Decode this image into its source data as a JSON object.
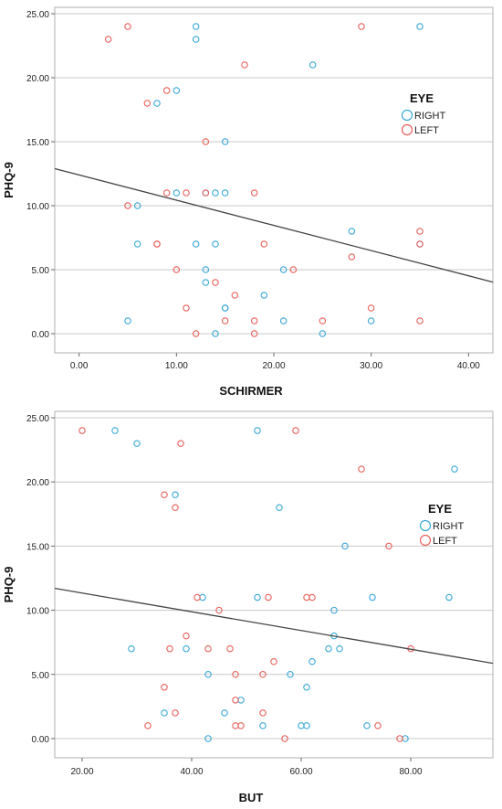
{
  "chart_data": [
    {
      "type": "scatter",
      "xlabel": "SCHIRMER",
      "ylabel": "PHQ-9",
      "xlim": [
        -2.5,
        42.5
      ],
      "ylim": [
        -1.5,
        25.5
      ],
      "xticks": [
        "0.00",
        "10.00",
        "20.00",
        "30.00",
        "40.00"
      ],
      "yticks": [
        "0.00",
        "5.00",
        "10.00",
        "15.00",
        "20.00",
        "25.00"
      ],
      "grid": "horizontal",
      "legend": {
        "title": "EYE",
        "placement": "right",
        "entries": [
          "RIGHT",
          "LEFT"
        ]
      },
      "colors": {
        "RIGHT": "#38a8d8",
        "LEFT": "#e8605a",
        "fit": "#444444"
      },
      "series": [
        {
          "name": "RIGHT",
          "points": [
            [
              12,
              24
            ],
            [
              35,
              24
            ],
            [
              12,
              23
            ],
            [
              24,
              21
            ],
            [
              10,
              19
            ],
            [
              8,
              18
            ],
            [
              15,
              15
            ],
            [
              10,
              11
            ],
            [
              14,
              11
            ],
            [
              15,
              11
            ],
            [
              13,
              11
            ],
            [
              6,
              10
            ],
            [
              6,
              7
            ],
            [
              12,
              7
            ],
            [
              14,
              7
            ],
            [
              28,
              8
            ],
            [
              13,
              5
            ],
            [
              21,
              5
            ],
            [
              13,
              4
            ],
            [
              15,
              2
            ],
            [
              15,
              2
            ],
            [
              19,
              3
            ],
            [
              5,
              1
            ],
            [
              21,
              1
            ],
            [
              30,
              1
            ],
            [
              14,
              0
            ],
            [
              25,
              0
            ],
            [
              35,
              7
            ]
          ]
        },
        {
          "name": "LEFT",
          "points": [
            [
              5,
              24
            ],
            [
              29,
              24
            ],
            [
              3,
              23
            ],
            [
              17,
              21
            ],
            [
              9,
              19
            ],
            [
              7,
              18
            ],
            [
              13,
              15
            ],
            [
              9,
              11
            ],
            [
              11,
              11
            ],
            [
              13,
              11
            ],
            [
              18,
              11
            ],
            [
              5,
              10
            ],
            [
              8,
              7
            ],
            [
              8,
              7
            ],
            [
              19,
              7
            ],
            [
              35,
              7
            ],
            [
              35,
              8
            ],
            [
              10,
              5
            ],
            [
              22,
              5
            ],
            [
              28,
              6
            ],
            [
              14,
              4
            ],
            [
              16,
              3
            ],
            [
              11,
              2
            ],
            [
              30,
              2
            ],
            [
              15,
              1
            ],
            [
              18,
              1
            ],
            [
              25,
              1
            ],
            [
              35,
              1
            ],
            [
              12,
              0
            ],
            [
              18,
              0
            ]
          ]
        }
      ],
      "fit_line": {
        "intercept": 12.4,
        "slope": -0.197
      }
    },
    {
      "type": "scatter",
      "xlabel": "BUT",
      "ylabel": "PHQ-9",
      "xlim": [
        15,
        95
      ],
      "ylim": [
        -1.5,
        25.5
      ],
      "xticks": [
        "20.00",
        "40.00",
        "60.00",
        "80.00"
      ],
      "yticks": [
        "0.00",
        "5.00",
        "10.00",
        "15.00",
        "20.00",
        "25.00"
      ],
      "grid": "horizontal",
      "legend": {
        "title": "EYE",
        "placement": "right",
        "entries": [
          "RIGHT",
          "LEFT"
        ]
      },
      "colors": {
        "RIGHT": "#38a8d8",
        "LEFT": "#e8605a",
        "fit": "#444444"
      },
      "series": [
        {
          "name": "RIGHT",
          "points": [
            [
              26,
              24
            ],
            [
              52,
              24
            ],
            [
              30,
              23
            ],
            [
              88,
              21
            ],
            [
              37,
              19
            ],
            [
              56,
              18
            ],
            [
              68,
              15
            ],
            [
              42,
              11
            ],
            [
              52,
              11
            ],
            [
              73,
              11
            ],
            [
              87,
              11
            ],
            [
              66,
              10
            ],
            [
              66,
              8
            ],
            [
              29,
              7
            ],
            [
              39,
              7
            ],
            [
              65,
              7
            ],
            [
              67,
              7
            ],
            [
              43,
              5
            ],
            [
              58,
              5
            ],
            [
              62,
              6
            ],
            [
              61,
              4
            ],
            [
              35,
              2
            ],
            [
              46,
              2
            ],
            [
              49,
              3
            ],
            [
              53,
              1
            ],
            [
              60,
              1
            ],
            [
              61,
              1
            ],
            [
              72,
              1
            ],
            [
              43,
              0
            ],
            [
              79,
              0
            ]
          ]
        },
        {
          "name": "LEFT",
          "points": [
            [
              20,
              24
            ],
            [
              59,
              24
            ],
            [
              38,
              23
            ],
            [
              71,
              21
            ],
            [
              35,
              19
            ],
            [
              37,
              18
            ],
            [
              76,
              15
            ],
            [
              41,
              11
            ],
            [
              54,
              11
            ],
            [
              61,
              11
            ],
            [
              62,
              11
            ],
            [
              45,
              10
            ],
            [
              39,
              8
            ],
            [
              36,
              7
            ],
            [
              43,
              7
            ],
            [
              47,
              7
            ],
            [
              80,
              7
            ],
            [
              48,
              5
            ],
            [
              53,
              5
            ],
            [
              55,
              6
            ],
            [
              35,
              4
            ],
            [
              48,
              3
            ],
            [
              37,
              2
            ],
            [
              53,
              2
            ],
            [
              32,
              1
            ],
            [
              48,
              1
            ],
            [
              49,
              1
            ],
            [
              74,
              1
            ],
            [
              57,
              0
            ],
            [
              78,
              0
            ]
          ]
        }
      ],
      "fit_line": {
        "intercept": 12.8,
        "slope": -0.073
      }
    }
  ]
}
